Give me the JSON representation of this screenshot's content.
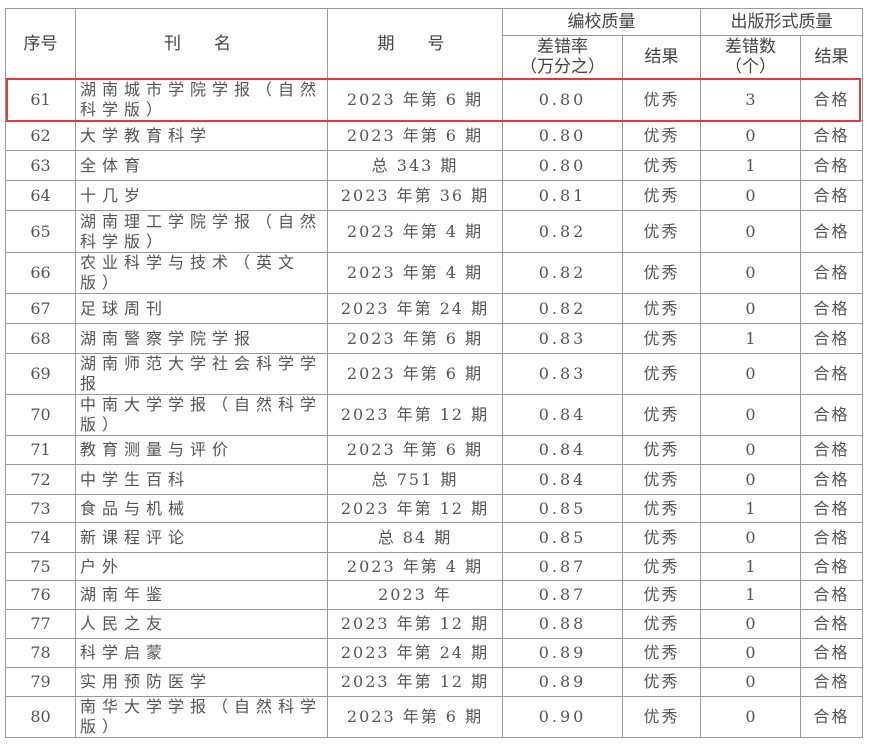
{
  "headers": {
    "seq": "序号",
    "name": "刊　名",
    "issue": "期　号",
    "editing_quality": "编校质量",
    "error_rate": "差错率",
    "error_rate_unit": "（万分之）",
    "result1": "结果",
    "format_quality": "出版形式质量",
    "error_count": "差错数",
    "error_count_unit": "（个）",
    "result2": "结果"
  },
  "highlight_color": "#e23a3a",
  "rows": [
    {
      "seq": "61",
      "name": "湖南城市学院学报（自然科学版）",
      "issue": "2023 年第 6 期",
      "rate": "0.80",
      "result1": "优秀",
      "count": "3",
      "result2": "合格",
      "highlighted": true
    },
    {
      "seq": "62",
      "name": "大学教育科学",
      "issue": "2023 年第 6 期",
      "rate": "0.80",
      "result1": "优秀",
      "count": "0",
      "result2": "合格"
    },
    {
      "seq": "63",
      "name": "全体育",
      "issue": "总 343 期",
      "rate": "0.80",
      "result1": "优秀",
      "count": "1",
      "result2": "合格"
    },
    {
      "seq": "64",
      "name": "十几岁",
      "issue": "2023 年第 36 期",
      "rate": "0.81",
      "result1": "优秀",
      "count": "0",
      "result2": "合格"
    },
    {
      "seq": "65",
      "name": "湖南理工学院学报（自然科学版）",
      "issue": "2023 年第 4 期",
      "rate": "0.82",
      "result1": "优秀",
      "count": "0",
      "result2": "合格"
    },
    {
      "seq": "66",
      "name": "农业科学与技术（英文版）",
      "issue": "2023 年第 4 期",
      "rate": "0.82",
      "result1": "优秀",
      "count": "0",
      "result2": "合格"
    },
    {
      "seq": "67",
      "name": "足球周刊",
      "issue": "2023 年第 24 期",
      "rate": "0.82",
      "result1": "优秀",
      "count": "0",
      "result2": "合格"
    },
    {
      "seq": "68",
      "name": "湖南警察学院学报",
      "issue": "2023 年第 6 期",
      "rate": "0.83",
      "result1": "优秀",
      "count": "1",
      "result2": "合格"
    },
    {
      "seq": "69",
      "name": "湖南师范大学社会科学学报",
      "issue": "2023 年第 6 期",
      "rate": "0.83",
      "result1": "优秀",
      "count": "0",
      "result2": "合格"
    },
    {
      "seq": "70",
      "name": "中南大学学报（自然科学版）",
      "issue": "2023 年第 12 期",
      "rate": "0.84",
      "result1": "优秀",
      "count": "0",
      "result2": "合格"
    },
    {
      "seq": "71",
      "name": "教育测量与评价",
      "issue": "2023 年第 6 期",
      "rate": "0.84",
      "result1": "优秀",
      "count": "0",
      "result2": "合格"
    },
    {
      "seq": "72",
      "name": "中学生百科",
      "issue": "总 751 期",
      "rate": "0.84",
      "result1": "优秀",
      "count": "0",
      "result2": "合格"
    },
    {
      "seq": "73",
      "name": "食品与机械",
      "issue": "2023 年第 12 期",
      "rate": "0.85",
      "result1": "优秀",
      "count": "1",
      "result2": "合格"
    },
    {
      "seq": "74",
      "name": "新课程评论",
      "issue": "总 84 期",
      "rate": "0.85",
      "result1": "优秀",
      "count": "0",
      "result2": "合格"
    },
    {
      "seq": "75",
      "name": "户外",
      "issue": "2023 年第 4 期",
      "rate": "0.87",
      "result1": "优秀",
      "count": "1",
      "result2": "合格"
    },
    {
      "seq": "76",
      "name": "湖南年鉴",
      "issue": "2023 年",
      "rate": "0.87",
      "result1": "优秀",
      "count": "1",
      "result2": "合格"
    },
    {
      "seq": "77",
      "name": "人民之友",
      "issue": "2023 年第 12 期",
      "rate": "0.88",
      "result1": "优秀",
      "count": "0",
      "result2": "合格"
    },
    {
      "seq": "78",
      "name": "科学启蒙",
      "issue": "2023 年第 24 期",
      "rate": "0.89",
      "result1": "优秀",
      "count": "0",
      "result2": "合格"
    },
    {
      "seq": "79",
      "name": "实用预防医学",
      "issue": "2023 年第 12 期",
      "rate": "0.89",
      "result1": "优秀",
      "count": "0",
      "result2": "合格"
    },
    {
      "seq": "80",
      "name": "南华大学学报（自然科学版）",
      "issue": "2023 年第 6 期",
      "rate": "0.90",
      "result1": "优秀",
      "count": "0",
      "result2": "合格"
    }
  ]
}
